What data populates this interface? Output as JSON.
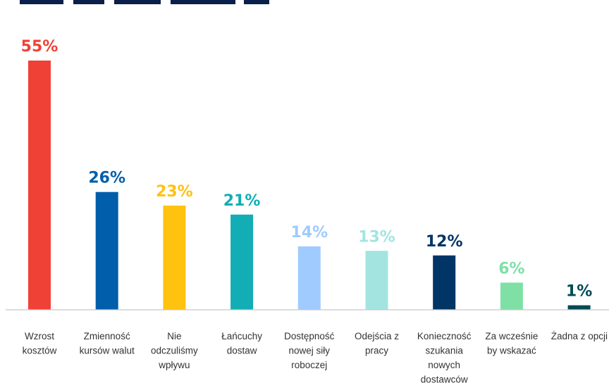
{
  "chart_data": {
    "type": "bar",
    "title": "",
    "xlabel": "",
    "ylabel": "",
    "ylim": [
      0,
      55
    ],
    "grid": false,
    "legend": "none",
    "value_suffix": "%",
    "categories": [
      [
        "Wzrost",
        "kosztów"
      ],
      [
        "Zmienność",
        "kursów walut"
      ],
      [
        "Nie",
        "odczuliśmy",
        "wpływu"
      ],
      [
        "Łańcuchy",
        "dostaw"
      ],
      [
        "Dostępność",
        "nowej siły",
        "roboczej"
      ],
      [
        "Odejścia z",
        "pracy"
      ],
      [
        "Konieczność",
        "szukania",
        "nowych",
        "dostawców"
      ],
      [
        "Za wcześnie",
        "by wskazać"
      ],
      [
        "Żadna z opcji"
      ]
    ],
    "values": [
      55,
      26,
      23,
      21,
      14,
      13,
      12,
      6,
      1
    ],
    "value_labels": [
      "55%",
      "26%",
      "23%",
      "21%",
      "14%",
      "13%",
      "12%",
      "6%",
      "1%"
    ],
    "colors": [
      "#ef4136",
      "#005eab",
      "#ffc20e",
      "#12adb5",
      "#9fcbff",
      "#a3e4e0",
      "#003566",
      "#7fe0a6",
      "#004b54"
    ],
    "label_colors": [
      "#ef4136",
      "#005eab",
      "#ffc20e",
      "#12adb5",
      "#9fcbff",
      "#a3e4e0",
      "#003566",
      "#7fe0a6",
      "#004b54"
    ]
  }
}
